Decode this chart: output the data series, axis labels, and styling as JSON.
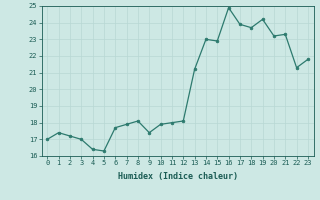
{
  "x": [
    0,
    1,
    2,
    3,
    4,
    5,
    6,
    7,
    8,
    9,
    10,
    11,
    12,
    13,
    14,
    15,
    16,
    17,
    18,
    19,
    20,
    21,
    22,
    23
  ],
  "y": [
    17.0,
    17.4,
    17.2,
    17.0,
    16.4,
    16.3,
    17.7,
    17.9,
    18.1,
    17.4,
    17.9,
    18.0,
    18.1,
    21.2,
    23.0,
    22.9,
    24.9,
    23.9,
    23.7,
    24.2,
    23.2,
    23.3,
    21.3,
    21.8
  ],
  "line_color": "#2d7a6e",
  "bg_color": "#cde8e4",
  "grid_color": "#b8d8d4",
  "text_color": "#1a5c54",
  "xlabel": "Humidex (Indice chaleur)",
  "ylim": [
    16,
    25
  ],
  "xlim": [
    -0.5,
    23.5
  ],
  "yticks": [
    16,
    17,
    18,
    19,
    20,
    21,
    22,
    23,
    24,
    25
  ],
  "xticks": [
    0,
    1,
    2,
    3,
    4,
    5,
    6,
    7,
    8,
    9,
    10,
    11,
    12,
    13,
    14,
    15,
    16,
    17,
    18,
    19,
    20,
    21,
    22,
    23
  ],
  "tick_fontsize": 5.0,
  "xlabel_fontsize": 6.0,
  "line_width": 0.9,
  "marker_size": 2.0
}
